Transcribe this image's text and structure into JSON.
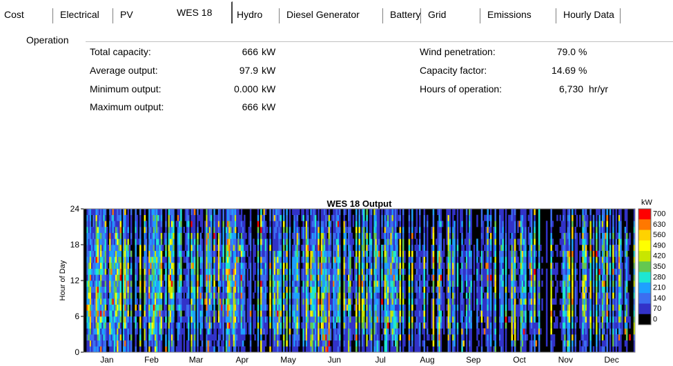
{
  "tabs": [
    {
      "label": "Cost",
      "active": false
    },
    {
      "label": "Electrical",
      "active": false
    },
    {
      "label": "PV",
      "active": false
    },
    {
      "label": "WES 18",
      "active": true
    },
    {
      "label": "Hydro",
      "active": false
    },
    {
      "label": "Diesel Generator",
      "active": false
    },
    {
      "label": "Battery",
      "active": false
    },
    {
      "label": "Grid",
      "active": false
    },
    {
      "label": "Emissions",
      "active": false
    },
    {
      "label": "Hourly Data",
      "active": false
    }
  ],
  "operation": {
    "group_label": "Operation",
    "left": [
      {
        "label": "Total capacity:",
        "value": "666",
        "unit": "kW"
      },
      {
        "label": "Average output:",
        "value": "97.9",
        "unit": "kW"
      },
      {
        "label": "Minimum output:",
        "value": "0.000",
        "unit": "kW"
      },
      {
        "label": "Maximum output:",
        "value": "666",
        "unit": "kW"
      }
    ],
    "right": [
      {
        "label": "Wind penetration:",
        "value": "79.0",
        "unit": "%"
      },
      {
        "label": "Capacity factor:",
        "value": "14.69",
        "unit": "%"
      },
      {
        "label": "Hours of operation:",
        "value": "6,730",
        "unit": "hr/yr"
      }
    ]
  },
  "chart_data": {
    "type": "heatmap",
    "title": "WES 18 Output",
    "ylabel": "Hour of Day",
    "xlabel": "",
    "x_categories": [
      "Jan",
      "Feb",
      "Mar",
      "Apr",
      "May",
      "Jun",
      "Jul",
      "Aug",
      "Sep",
      "Oct",
      "Nov",
      "Dec"
    ],
    "days_per_month": [
      31,
      28,
      31,
      30,
      31,
      30,
      31,
      31,
      30,
      31,
      30,
      31
    ],
    "ylim": [
      0,
      24
    ],
    "y_ticks": [
      "0",
      "6",
      "12",
      "18",
      "24"
    ],
    "colorbar": {
      "unit": "kW",
      "min": 0,
      "max": 700,
      "tick_labels": [
        "700",
        "630",
        "560",
        "490",
        "420",
        "350",
        "280",
        "210",
        "140",
        "70",
        "0"
      ],
      "colors": [
        "#ff0000",
        "#ff7800",
        "#ffd200",
        "#ffff00",
        "#c8e600",
        "#64c850",
        "#1ee6d2",
        "#1ea0ff",
        "#3c6ef0",
        "#3232c8",
        "#000000"
      ]
    },
    "monthly_activity": [
      0.62,
      0.66,
      0.7,
      0.72,
      0.66,
      0.7,
      0.66,
      0.48,
      0.42,
      0.4,
      0.36,
      0.44
    ]
  }
}
